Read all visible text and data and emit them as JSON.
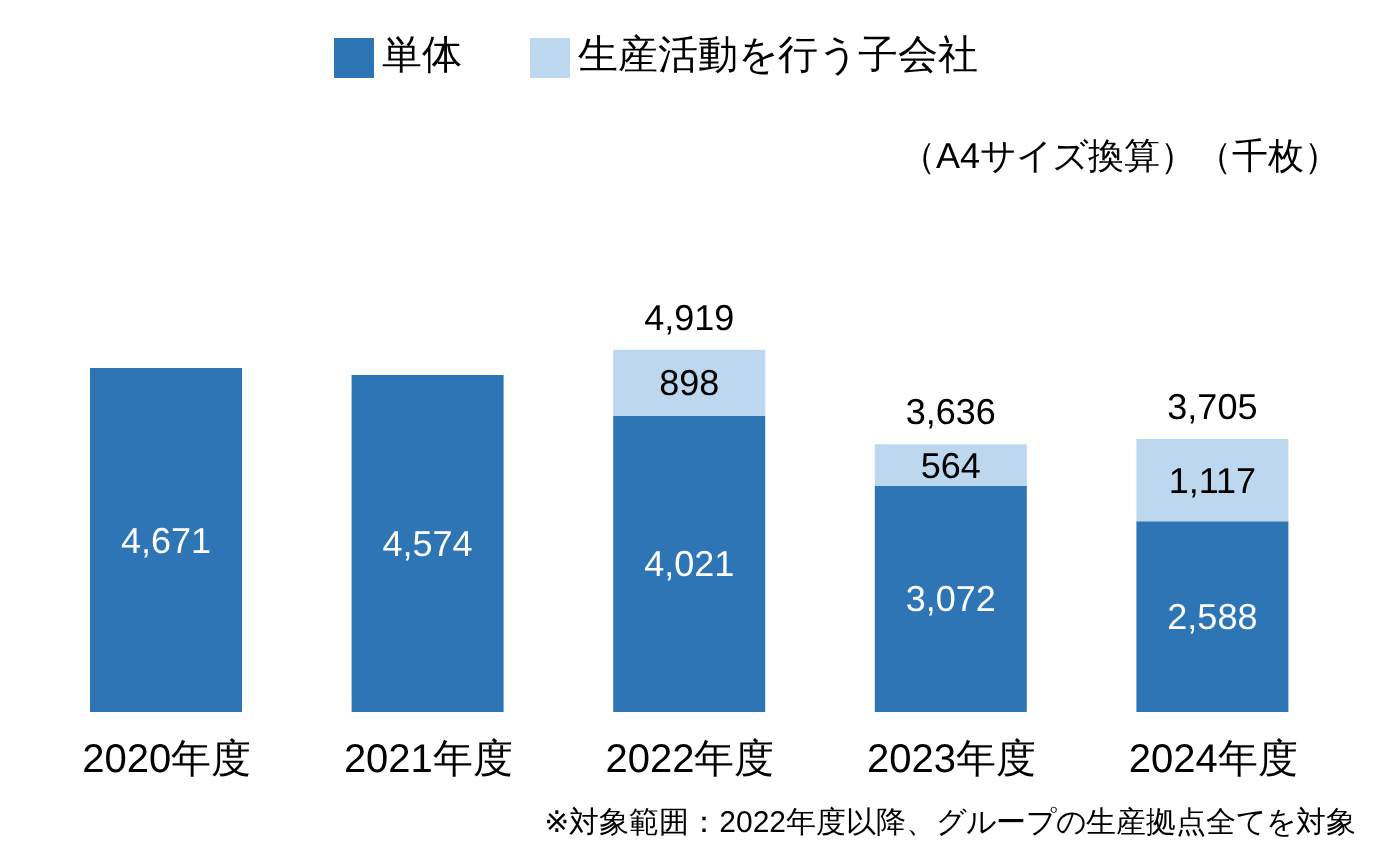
{
  "chart_data": {
    "type": "bar",
    "stacked": true,
    "subtitle": "（A4サイズ換算）（千枚）",
    "categories": [
      "2020年度",
      "2021年度",
      "2022年度",
      "2023年度",
      "2024年度"
    ],
    "series": [
      {
        "name": "単体",
        "color": "#2e75b6",
        "values": [
          4671,
          4574,
          4021,
          3072,
          2588
        ],
        "value_labels": [
          "4,671",
          "4,574",
          "4,021",
          "3,072",
          "2,588"
        ]
      },
      {
        "name": "生産活動を行う子会社",
        "color": "#bdd7ee",
        "values": [
          null,
          null,
          898,
          564,
          1117
        ],
        "value_labels": [
          null,
          null,
          "898",
          "564",
          "1,117"
        ]
      }
    ],
    "totals": [
      null,
      null,
      "4,919",
      "3,636",
      "3,705"
    ],
    "legend": "top",
    "grid": false,
    "annotations": [
      "※対象範囲：2022年度以降、グループの生産拠点全てを対象"
    ]
  }
}
